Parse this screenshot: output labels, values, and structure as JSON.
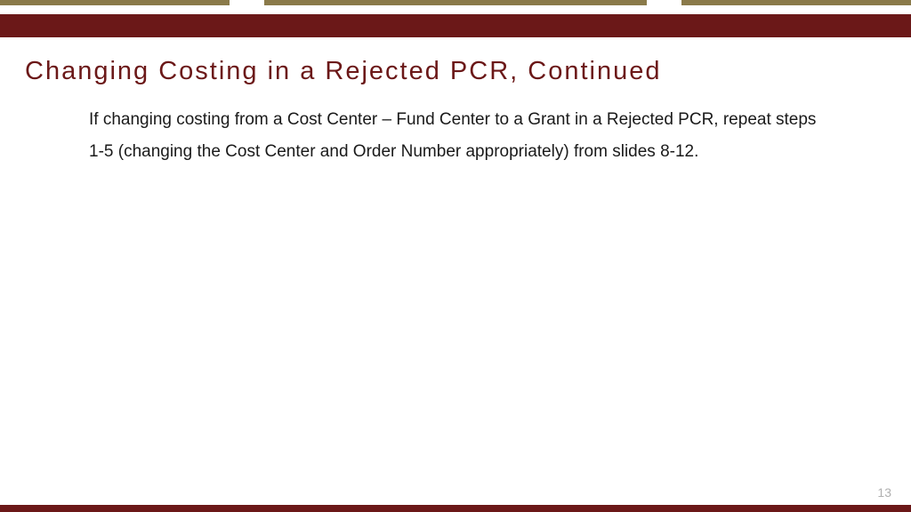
{
  "colors": {
    "maroon": "#6b1818",
    "olive": "#8a7a4a",
    "title_color": "#6b1818",
    "body_text": "#1a1a1a",
    "page_number": "#b0b0b0",
    "background": "#ffffff"
  },
  "layout": {
    "top_bar_height": 6,
    "header_band_height": 26,
    "footer_band_height": 8,
    "top_bar_gap": 10
  },
  "title": "Changing Costing in a Rejected PCR, Continued",
  "body": "If changing costing from a Cost Center – Fund Center to a Grant in a Rejected PCR, repeat steps 1-5 (changing the Cost Center and Order Number appropriately) from slides 8-12.",
  "page_number": "13",
  "typography": {
    "title_fontsize": 29,
    "title_letter_spacing": 2,
    "body_fontsize": 19,
    "body_line_height": 1.9,
    "page_number_fontsize": 14
  }
}
